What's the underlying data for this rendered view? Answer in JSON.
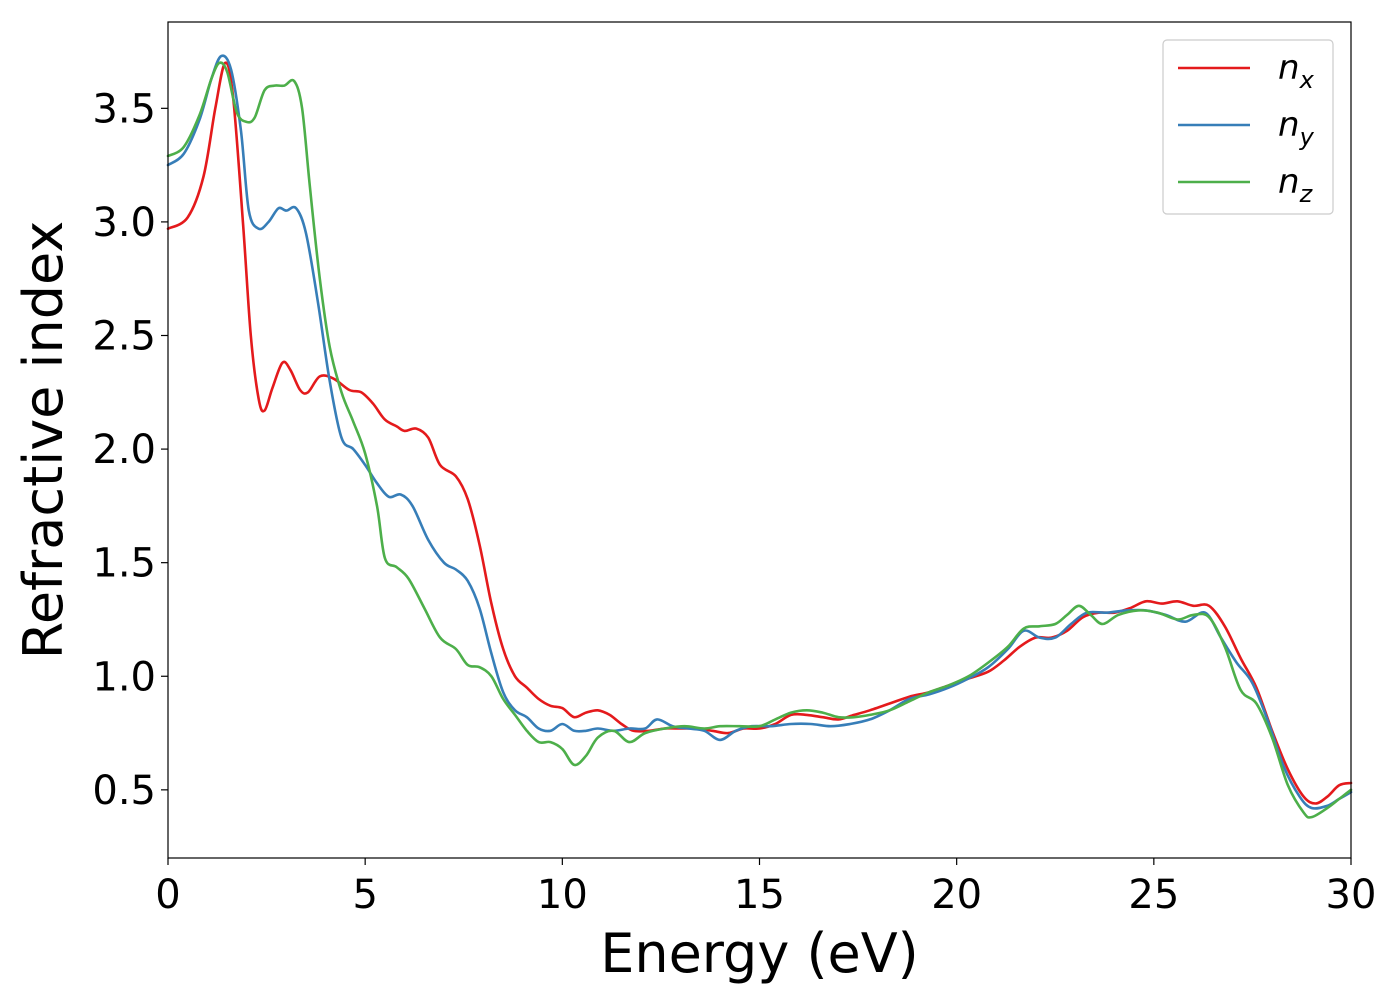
{
  "chart_data": {
    "type": "line",
    "title": "",
    "xlabel": "Energy (eV)",
    "ylabel": "Refractive index",
    "xlim": [
      0,
      30
    ],
    "ylim": [
      0.2,
      3.88
    ],
    "xticks": [
      "0",
      "5",
      "10",
      "15",
      "20",
      "25",
      "30"
    ],
    "yticks": [
      "0.5",
      "1.0",
      "1.5",
      "2.0",
      "2.5",
      "3.0",
      "3.5"
    ],
    "grid": false,
    "legend_position": "top-right",
    "series": [
      {
        "name": "n",
        "subscript": "x",
        "color": "#e41a1c",
        "points": [
          [
            0,
            2.97
          ],
          [
            0.5,
            3.02
          ],
          [
            0.9,
            3.2
          ],
          [
            1.2,
            3.5
          ],
          [
            1.45,
            3.7
          ],
          [
            1.65,
            3.55
          ],
          [
            1.9,
            3.0
          ],
          [
            2.1,
            2.5
          ],
          [
            2.3,
            2.22
          ],
          [
            2.45,
            2.17
          ],
          [
            2.65,
            2.27
          ],
          [
            2.9,
            2.38
          ],
          [
            3.1,
            2.35
          ],
          [
            3.35,
            2.26
          ],
          [
            3.55,
            2.25
          ],
          [
            3.85,
            2.32
          ],
          [
            4.2,
            2.31
          ],
          [
            4.6,
            2.26
          ],
          [
            4.9,
            2.25
          ],
          [
            5.2,
            2.2
          ],
          [
            5.5,
            2.13
          ],
          [
            5.8,
            2.1
          ],
          [
            6.0,
            2.08
          ],
          [
            6.3,
            2.09
          ],
          [
            6.6,
            2.05
          ],
          [
            6.9,
            1.93
          ],
          [
            7.3,
            1.88
          ],
          [
            7.6,
            1.78
          ],
          [
            7.9,
            1.58
          ],
          [
            8.2,
            1.32
          ],
          [
            8.5,
            1.12
          ],
          [
            8.8,
            1.0
          ],
          [
            9.1,
            0.95
          ],
          [
            9.4,
            0.9
          ],
          [
            9.7,
            0.87
          ],
          [
            10.0,
            0.86
          ],
          [
            10.3,
            0.82
          ],
          [
            10.6,
            0.84
          ],
          [
            10.9,
            0.85
          ],
          [
            11.2,
            0.83
          ],
          [
            11.5,
            0.79
          ],
          [
            11.8,
            0.76
          ],
          [
            12.2,
            0.76
          ],
          [
            12.6,
            0.77
          ],
          [
            13.0,
            0.77
          ],
          [
            13.4,
            0.77
          ],
          [
            13.8,
            0.76
          ],
          [
            14.2,
            0.75
          ],
          [
            14.6,
            0.77
          ],
          [
            15.0,
            0.77
          ],
          [
            15.4,
            0.79
          ],
          [
            15.8,
            0.83
          ],
          [
            16.2,
            0.83
          ],
          [
            16.6,
            0.82
          ],
          [
            17.0,
            0.81
          ],
          [
            17.4,
            0.83
          ],
          [
            17.8,
            0.85
          ],
          [
            18.3,
            0.88
          ],
          [
            18.8,
            0.91
          ],
          [
            19.3,
            0.93
          ],
          [
            19.8,
            0.96
          ],
          [
            20.3,
            0.99
          ],
          [
            20.8,
            1.02
          ],
          [
            21.2,
            1.07
          ],
          [
            21.6,
            1.13
          ],
          [
            22.0,
            1.17
          ],
          [
            22.4,
            1.17
          ],
          [
            22.8,
            1.2
          ],
          [
            23.2,
            1.26
          ],
          [
            23.6,
            1.28
          ],
          [
            24.0,
            1.28
          ],
          [
            24.4,
            1.3
          ],
          [
            24.8,
            1.33
          ],
          [
            25.2,
            1.32
          ],
          [
            25.6,
            1.33
          ],
          [
            26.0,
            1.31
          ],
          [
            26.4,
            1.31
          ],
          [
            26.8,
            1.22
          ],
          [
            27.2,
            1.08
          ],
          [
            27.6,
            0.95
          ],
          [
            28.0,
            0.76
          ],
          [
            28.4,
            0.59
          ],
          [
            28.8,
            0.47
          ],
          [
            29.1,
            0.44
          ],
          [
            29.4,
            0.47
          ],
          [
            29.7,
            0.52
          ],
          [
            30.0,
            0.53
          ]
        ]
      },
      {
        "name": "n",
        "subscript": "y",
        "color": "#377eb8",
        "points": [
          [
            0,
            3.25
          ],
          [
            0.4,
            3.3
          ],
          [
            0.8,
            3.45
          ],
          [
            1.1,
            3.63
          ],
          [
            1.35,
            3.73
          ],
          [
            1.6,
            3.67
          ],
          [
            1.85,
            3.4
          ],
          [
            2.05,
            3.05
          ],
          [
            2.3,
            2.97
          ],
          [
            2.55,
            3.0
          ],
          [
            2.8,
            3.06
          ],
          [
            3.0,
            3.05
          ],
          [
            3.25,
            3.06
          ],
          [
            3.5,
            2.95
          ],
          [
            3.8,
            2.65
          ],
          [
            4.1,
            2.3
          ],
          [
            4.4,
            2.05
          ],
          [
            4.7,
            2.0
          ],
          [
            5.0,
            1.93
          ],
          [
            5.3,
            1.85
          ],
          [
            5.6,
            1.79
          ],
          [
            5.9,
            1.8
          ],
          [
            6.2,
            1.75
          ],
          [
            6.6,
            1.6
          ],
          [
            7.0,
            1.5
          ],
          [
            7.3,
            1.47
          ],
          [
            7.6,
            1.42
          ],
          [
            7.9,
            1.3
          ],
          [
            8.2,
            1.1
          ],
          [
            8.5,
            0.93
          ],
          [
            8.8,
            0.85
          ],
          [
            9.1,
            0.82
          ],
          [
            9.4,
            0.77
          ],
          [
            9.7,
            0.76
          ],
          [
            10.0,
            0.79
          ],
          [
            10.3,
            0.76
          ],
          [
            10.6,
            0.76
          ],
          [
            10.9,
            0.77
          ],
          [
            11.3,
            0.76
          ],
          [
            11.7,
            0.77
          ],
          [
            12.1,
            0.77
          ],
          [
            12.4,
            0.81
          ],
          [
            12.8,
            0.78
          ],
          [
            13.2,
            0.77
          ],
          [
            13.6,
            0.76
          ],
          [
            14.0,
            0.72
          ],
          [
            14.4,
            0.76
          ],
          [
            14.8,
            0.78
          ],
          [
            15.3,
            0.78
          ],
          [
            15.8,
            0.79
          ],
          [
            16.3,
            0.79
          ],
          [
            16.8,
            0.78
          ],
          [
            17.3,
            0.79
          ],
          [
            17.8,
            0.81
          ],
          [
            18.3,
            0.85
          ],
          [
            18.8,
            0.9
          ],
          [
            19.3,
            0.92
          ],
          [
            19.8,
            0.95
          ],
          [
            20.3,
            0.99
          ],
          [
            20.8,
            1.04
          ],
          [
            21.3,
            1.12
          ],
          [
            21.7,
            1.2
          ],
          [
            22.1,
            1.17
          ],
          [
            22.5,
            1.17
          ],
          [
            22.9,
            1.23
          ],
          [
            23.3,
            1.28
          ],
          [
            23.8,
            1.28
          ],
          [
            24.3,
            1.29
          ],
          [
            24.8,
            1.29
          ],
          [
            25.3,
            1.27
          ],
          [
            25.8,
            1.24
          ],
          [
            26.3,
            1.28
          ],
          [
            26.7,
            1.17
          ],
          [
            27.1,
            1.06
          ],
          [
            27.5,
            0.97
          ],
          [
            27.9,
            0.8
          ],
          [
            28.3,
            0.6
          ],
          [
            28.7,
            0.47
          ],
          [
            29.0,
            0.42
          ],
          [
            29.4,
            0.43
          ],
          [
            29.7,
            0.46
          ],
          [
            30.0,
            0.49
          ]
        ]
      },
      {
        "name": "n",
        "subscript": "z",
        "color": "#4daf4a",
        "points": [
          [
            0,
            3.29
          ],
          [
            0.4,
            3.33
          ],
          [
            0.8,
            3.47
          ],
          [
            1.1,
            3.63
          ],
          [
            1.3,
            3.7
          ],
          [
            1.5,
            3.66
          ],
          [
            1.75,
            3.48
          ],
          [
            2.0,
            3.44
          ],
          [
            2.2,
            3.46
          ],
          [
            2.45,
            3.58
          ],
          [
            2.7,
            3.6
          ],
          [
            2.95,
            3.6
          ],
          [
            3.2,
            3.62
          ],
          [
            3.4,
            3.5
          ],
          [
            3.6,
            3.15
          ],
          [
            3.85,
            2.75
          ],
          [
            4.1,
            2.45
          ],
          [
            4.4,
            2.25
          ],
          [
            4.7,
            2.12
          ],
          [
            5.0,
            1.98
          ],
          [
            5.3,
            1.75
          ],
          [
            5.5,
            1.52
          ],
          [
            5.8,
            1.48
          ],
          [
            6.1,
            1.43
          ],
          [
            6.5,
            1.3
          ],
          [
            6.9,
            1.17
          ],
          [
            7.3,
            1.12
          ],
          [
            7.6,
            1.05
          ],
          [
            7.9,
            1.04
          ],
          [
            8.2,
            1.0
          ],
          [
            8.5,
            0.9
          ],
          [
            8.8,
            0.83
          ],
          [
            9.1,
            0.76
          ],
          [
            9.4,
            0.71
          ],
          [
            9.7,
            0.71
          ],
          [
            10.0,
            0.68
          ],
          [
            10.3,
            0.61
          ],
          [
            10.6,
            0.65
          ],
          [
            10.9,
            0.73
          ],
          [
            11.3,
            0.76
          ],
          [
            11.7,
            0.71
          ],
          [
            12.1,
            0.75
          ],
          [
            12.6,
            0.77
          ],
          [
            13.1,
            0.78
          ],
          [
            13.6,
            0.77
          ],
          [
            14.0,
            0.78
          ],
          [
            14.5,
            0.78
          ],
          [
            15.0,
            0.78
          ],
          [
            15.4,
            0.81
          ],
          [
            15.8,
            0.84
          ],
          [
            16.2,
            0.85
          ],
          [
            16.6,
            0.84
          ],
          [
            17.0,
            0.82
          ],
          [
            17.4,
            0.82
          ],
          [
            17.8,
            0.83
          ],
          [
            18.3,
            0.85
          ],
          [
            18.8,
            0.89
          ],
          [
            19.3,
            0.93
          ],
          [
            19.8,
            0.96
          ],
          [
            20.3,
            1.0
          ],
          [
            20.8,
            1.06
          ],
          [
            21.3,
            1.13
          ],
          [
            21.7,
            1.21
          ],
          [
            22.1,
            1.22
          ],
          [
            22.5,
            1.23
          ],
          [
            22.8,
            1.27
          ],
          [
            23.1,
            1.31
          ],
          [
            23.4,
            1.27
          ],
          [
            23.7,
            1.23
          ],
          [
            24.1,
            1.27
          ],
          [
            24.6,
            1.29
          ],
          [
            25.1,
            1.28
          ],
          [
            25.6,
            1.25
          ],
          [
            26.0,
            1.27
          ],
          [
            26.4,
            1.26
          ],
          [
            26.8,
            1.13
          ],
          [
            27.2,
            0.94
          ],
          [
            27.6,
            0.88
          ],
          [
            28.0,
            0.73
          ],
          [
            28.4,
            0.52
          ],
          [
            28.8,
            0.4
          ],
          [
            29.0,
            0.38
          ],
          [
            29.4,
            0.42
          ],
          [
            29.7,
            0.46
          ],
          [
            30.0,
            0.5
          ]
        ]
      }
    ]
  }
}
